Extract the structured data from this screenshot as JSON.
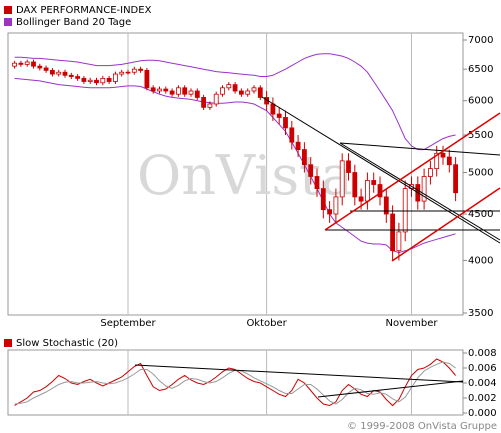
{
  "chart_data": [
    {
      "type": "candlestick",
      "name": "DAX PERFORMANCE-INDEX",
      "color": "#cc0000",
      "watermark": "OnVista",
      "log_scale": true,
      "ylim": [
        3500,
        7000
      ],
      "yticks": [
        3500,
        4000,
        4500,
        5000,
        5500,
        6000,
        6500,
        7000
      ],
      "xgrid": true,
      "categories": [
        null,
        null,
        null,
        null,
        null,
        null,
        null,
        null,
        null,
        null,
        null,
        null,
        null,
        null,
        null,
        null,
        null,
        null,
        "September",
        null,
        null,
        null,
        null,
        null,
        null,
        null,
        null,
        null,
        null,
        null,
        null,
        null,
        null,
        null,
        null,
        null,
        null,
        null,
        null,
        null,
        "Oktober",
        null,
        null,
        null,
        null,
        null,
        null,
        null,
        null,
        null,
        null,
        null,
        null,
        null,
        null,
        null,
        null,
        null,
        null,
        null,
        null,
        null,
        null,
        "November",
        null,
        null,
        null,
        null,
        null,
        null,
        null
      ],
      "open": [
        6550,
        6600,
        6580,
        6620,
        6550,
        6520,
        6480,
        6420,
        6450,
        6400,
        6380,
        6350,
        6300,
        6320,
        6280,
        6350,
        6300,
        6420,
        6450,
        6450,
        6500,
        6480,
        6200,
        6150,
        6180,
        6150,
        6100,
        6200,
        6100,
        6150,
        6050,
        5900,
        5950,
        6100,
        6200,
        6250,
        6150,
        6100,
        6150,
        6200,
        6050,
        5950,
        5800,
        5750,
        5600,
        5400,
        5300,
        5100,
        4950,
        4800,
        4550,
        4500,
        4700,
        5150,
        5000,
        4700,
        4650,
        4900,
        4850,
        4700,
        4500,
        4100,
        4300,
        4800,
        4850,
        4650,
        4950,
        5050,
        5250,
        5200,
        5100
      ],
      "high": [
        6640,
        6640,
        6660,
        6660,
        6590,
        6560,
        6520,
        6490,
        6490,
        6440,
        6420,
        6390,
        6360,
        6360,
        6390,
        6390,
        6460,
        6490,
        6490,
        6540,
        6540,
        6520,
        6240,
        6220,
        6220,
        6190,
        6240,
        6240,
        6190,
        6190,
        6090,
        5990,
        6140,
        6240,
        6290,
        6290,
        6190,
        6190,
        6240,
        6240,
        6150,
        6050,
        5900,
        5850,
        5700,
        5500,
        5400,
        5200,
        5050,
        4900,
        4650,
        4800,
        5250,
        5250,
        5100,
        4800,
        5000,
        5000,
        4950,
        4800,
        4600,
        4400,
        4900,
        4950,
        4950,
        5050,
        5150,
        5350,
        5350,
        5300,
        5200
      ],
      "low": [
        6510,
        6540,
        6540,
        6510,
        6480,
        6440,
        6380,
        6380,
        6360,
        6340,
        6310,
        6260,
        6260,
        6240,
        6240,
        6260,
        6260,
        6380,
        6410,
        6410,
        6440,
        6160,
        6110,
        6110,
        6110,
        6060,
        6060,
        6060,
        6060,
        6010,
        5860,
        5860,
        5910,
        6060,
        6160,
        6110,
        6060,
        6060,
        6110,
        6010,
        5850,
        5700,
        5650,
        5500,
        5300,
        5200,
        5000,
        4850,
        4700,
        4450,
        4400,
        4400,
        4600,
        4900,
        4600,
        4550,
        4550,
        4750,
        4600,
        4400,
        4000,
        4000,
        4200,
        4700,
        4550,
        4550,
        4850,
        4950,
        5100,
        5000,
        4650
      ],
      "close": [
        6600,
        6580,
        6620,
        6550,
        6520,
        6480,
        6420,
        6450,
        6400,
        6380,
        6350,
        6300,
        6320,
        6280,
        6350,
        6300,
        6420,
        6450,
        6450,
        6500,
        6480,
        6200,
        6150,
        6180,
        6150,
        6100,
        6200,
        6100,
        6150,
        6050,
        5900,
        5950,
        6100,
        6200,
        6250,
        6150,
        6100,
        6150,
        6200,
        6050,
        5950,
        5800,
        5750,
        5600,
        5400,
        5300,
        5100,
        4950,
        4800,
        4550,
        4500,
        4700,
        5150,
        5000,
        4700,
        4650,
        4900,
        4850,
        4700,
        4500,
        4100,
        4300,
        4800,
        4850,
        4650,
        4950,
        5050,
        5250,
        5200,
        5100,
        4750
      ],
      "bands": {
        "name": "Bollinger Band 20 Tage",
        "color": "#9933cc",
        "upper": [
          6700,
          6700,
          6690,
          6680,
          6680,
          6670,
          6660,
          6650,
          6640,
          6630,
          6620,
          6600,
          6580,
          6560,
          6560,
          6560,
          6570,
          6580,
          6600,
          6620,
          6640,
          6650,
          6650,
          6640,
          6620,
          6600,
          6580,
          6560,
          6540,
          6520,
          6500,
          6480,
          6460,
          6450,
          6440,
          6430,
          6420,
          6410,
          6400,
          6380,
          6380,
          6400,
          6450,
          6500,
          6560,
          6620,
          6680,
          6720,
          6750,
          6760,
          6760,
          6740,
          6720,
          6680,
          6620,
          6550,
          6450,
          6300,
          6150,
          6000,
          5850,
          5650,
          5450,
          5350,
          5300,
          5300,
          5350,
          5400,
          5450,
          5480,
          5500
        ],
        "lower": [
          6350,
          6340,
          6330,
          6320,
          6310,
          6290,
          6270,
          6250,
          6240,
          6230,
          6220,
          6210,
          6200,
          6200,
          6200,
          6200,
          6210,
          6220,
          6230,
          6230,
          6220,
          6180,
          6140,
          6100,
          6070,
          6050,
          6040,
          6030,
          6020,
          6000,
          5980,
          5970,
          5960,
          5960,
          5970,
          5980,
          5980,
          5970,
          5950,
          5900,
          5850,
          5750,
          5650,
          5550,
          5400,
          5250,
          5100,
          4950,
          4800,
          4650,
          4500,
          4400,
          4350,
          4300,
          4250,
          4200,
          4180,
          4170,
          4170,
          4160,
          4100,
          4080,
          4100,
          4120,
          4150,
          4180,
          4200,
          4220,
          4240,
          4260,
          4280
        ]
      }
    },
    {
      "type": "line",
      "ylim": [
        0,
        0.008
      ],
      "yticks": [
        {
          "value": 0,
          "label": "0.000"
        },
        0.002,
        0.004,
        0.006,
        0.008
      ],
      "series": [
        {
          "name": "Slow Stochastic (20)",
          "color": "#cc0000",
          "values": [
            0.001,
            0.0015,
            0.002,
            0.0028,
            0.003,
            0.0035,
            0.0042,
            0.005,
            0.0046,
            0.004,
            0.0038,
            0.0042,
            0.0045,
            0.004,
            0.0036,
            0.004,
            0.0044,
            0.0048,
            0.0055,
            0.0062,
            0.0066,
            0.005,
            0.0035,
            0.003,
            0.0032,
            0.0038,
            0.0045,
            0.005,
            0.0044,
            0.004,
            0.0038,
            0.0042,
            0.0048,
            0.0055,
            0.006,
            0.0058,
            0.0052,
            0.0046,
            0.0042,
            0.004,
            0.0035,
            0.003,
            0.0025,
            0.0022,
            0.003,
            0.0045,
            0.004,
            0.003,
            0.002,
            0.0012,
            0.001,
            0.0015,
            0.003,
            0.0038,
            0.0032,
            0.0025,
            0.0022,
            0.003,
            0.0028,
            0.0018,
            0.001,
            0.0018,
            0.0035,
            0.005,
            0.0058,
            0.006,
            0.0065,
            0.0072,
            0.0068,
            0.006,
            0.005
          ]
        },
        {
          "color": "#999999",
          "values": [
            0.0012,
            0.0013,
            0.0015,
            0.002,
            0.0024,
            0.0028,
            0.0033,
            0.0038,
            0.0041,
            0.0042,
            0.004,
            0.004,
            0.0041,
            0.0042,
            0.004,
            0.0039,
            0.004,
            0.0043,
            0.0047,
            0.0052,
            0.0058,
            0.0058,
            0.0052,
            0.0043,
            0.0036,
            0.0033,
            0.0037,
            0.0043,
            0.0046,
            0.0045,
            0.0042,
            0.004,
            0.0042,
            0.0047,
            0.0053,
            0.0057,
            0.0056,
            0.0052,
            0.0047,
            0.0043,
            0.0039,
            0.0035,
            0.003,
            0.0026,
            0.0026,
            0.0032,
            0.0038,
            0.0038,
            0.0032,
            0.0024,
            0.0016,
            0.0012,
            0.0018,
            0.0027,
            0.0033,
            0.0031,
            0.0026,
            0.0025,
            0.0027,
            0.0025,
            0.0019,
            0.0015,
            0.0021,
            0.0034,
            0.0047,
            0.0056,
            0.0061,
            0.0065,
            0.0068,
            0.0066,
            0.006
          ]
        }
      ]
    }
  ],
  "copyright": "© 1999-2008 OnVista Gruppe"
}
